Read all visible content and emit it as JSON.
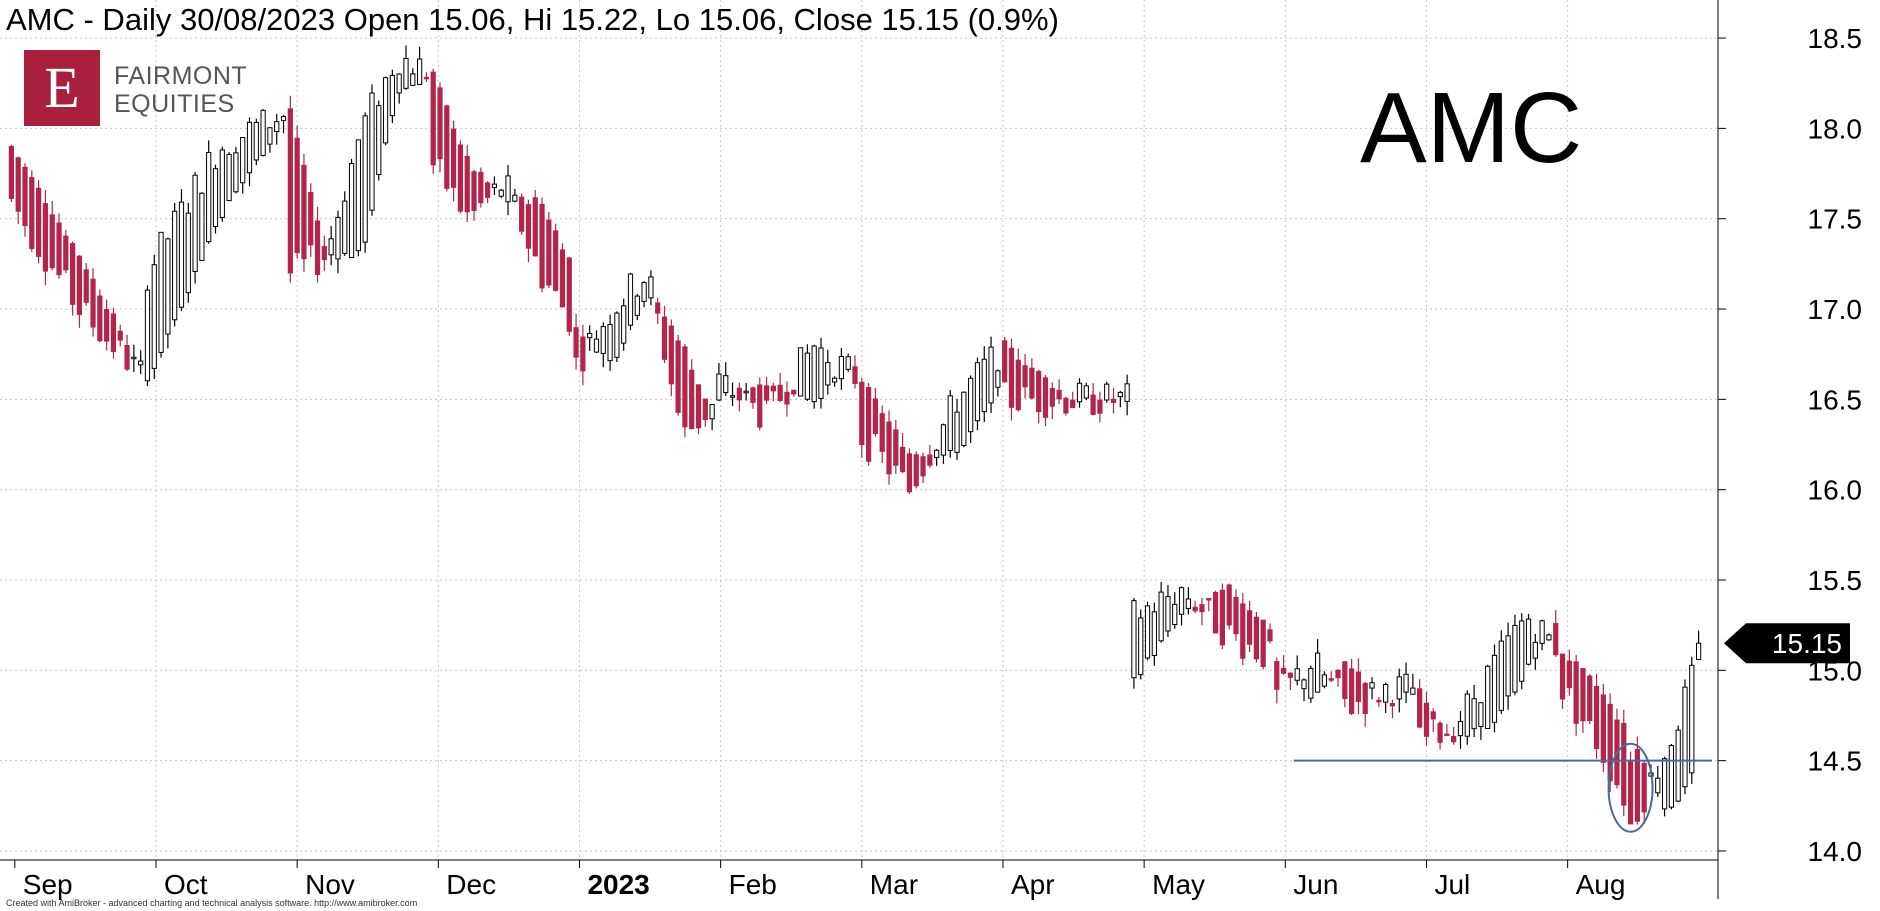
{
  "header": {
    "title": "AMC - Daily 30/08/2023 Open 15.06, Hi 15.22, Lo 15.06, Close 15.15 (0.9%)"
  },
  "logo": {
    "mark": "E",
    "line1": "FAIRMONT",
    "line2": "EQUITIES"
  },
  "watermark": "AMC",
  "footer": "Created with AmiBroker - advanced charting and technical analysis software. http://www.amibroker.com",
  "colors": {
    "up": "#ffffff",
    "down": "#b3254a",
    "candle_outline": "#000000",
    "support_line": "#4a6a99",
    "price_tag": "#000000"
  },
  "chart_data": {
    "type": "candlestick",
    "ticker": "AMC",
    "interval": "Daily",
    "ylim": [
      13.95,
      18.6
    ],
    "y_ticks": [
      "18.5",
      "18.0",
      "17.5",
      "17.0",
      "16.5",
      "16.0",
      "15.5",
      "15.0",
      "14.5",
      "14.0"
    ],
    "x_labels": [
      "Sep",
      "Oct",
      "Nov",
      "Dec",
      "2023",
      "Feb",
      "Mar",
      "Apr",
      "May",
      "Jun",
      "Jul",
      "Aug"
    ],
    "last_price_label": "15.15",
    "support_level": 14.5,
    "highlight": "Aug 14.15 low candle circled",
    "grid": true,
    "segments": [
      {
        "n": 20,
        "from": [
          17.9,
          17.3,
          16.6
        ],
        "to": [
          17.6,
          17.0,
          16.6
        ]
      },
      {
        "n": 21,
        "from": [
          16.6,
          17.5,
          18.1
        ],
        "to": [
          17.2,
          17.9,
          18.1
        ]
      },
      {
        "n": 21,
        "from": [
          18.1,
          17.3,
          17.3,
          18.2,
          18.3
        ],
        "to": [
          17.2,
          17.3,
          18.0,
          18.4,
          18.3
        ]
      },
      {
        "n": 21,
        "from": [
          18.3,
          17.8,
          17.6,
          17.6,
          17.2
        ],
        "to": [
          17.8,
          17.5,
          17.7,
          17.2,
          16.9
        ]
      },
      {
        "n": 21,
        "from": [
          16.9,
          16.7,
          17.1,
          16.8,
          16.3
        ],
        "to": [
          16.7,
          17.0,
          17.2,
          16.3,
          16.5
        ]
      },
      {
        "n": 21,
        "from": [
          16.5,
          16.6,
          16.5,
          16.7
        ],
        "to": [
          16.6,
          16.4,
          16.8,
          16.6
        ]
      },
      {
        "n": 21,
        "from": [
          16.6,
          16.2,
          16.2,
          16.6
        ],
        "to": [
          16.3,
          16.0,
          16.5,
          16.8
        ]
      },
      {
        "n": 19,
        "from": [
          16.8,
          16.5,
          16.5
        ],
        "to": [
          16.5,
          16.5,
          16.5
        ]
      },
      {
        "n": 21,
        "from": [
          14.95,
          15.3,
          15.45,
          15.2
        ],
        "to": [
          15.3,
          15.45,
          15.2,
          15.05
        ]
      },
      {
        "n": 21,
        "from": [
          15.05,
          14.85,
          15.05,
          14.8,
          14.9
        ],
        "to": [
          14.85,
          15.05,
          14.8,
          14.9,
          14.9
        ]
      },
      {
        "n": 21,
        "from": [
          14.9,
          14.6,
          14.7,
          15.0,
          15.3
        ],
        "to": [
          14.6,
          14.7,
          15.0,
          15.3,
          15.1
        ]
      },
      {
        "n": 21,
        "from": [
          15.1,
          14.9,
          14.6,
          14.2,
          14.6
        ],
        "to": [
          14.9,
          14.6,
          14.2,
          14.6,
          15.15
        ]
      }
    ]
  }
}
